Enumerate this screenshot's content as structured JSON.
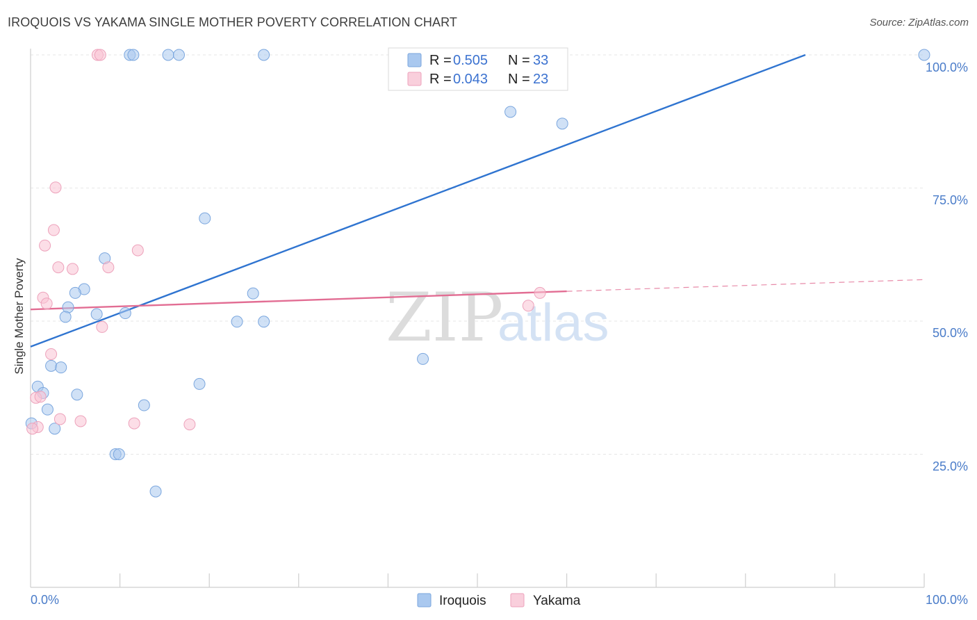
{
  "title": "IROQUOIS VS YAKAMA SINGLE MOTHER POVERTY CORRELATION CHART",
  "source": "Source: ZipAtlas.com",
  "colors": {
    "iroquois": "#a9c8ef",
    "iroquois_line": "#2f74d0",
    "yakama": "#f4b6c9",
    "yakama_line": "#e26d93",
    "tick": "#4a7cc9"
  },
  "chart_data": {
    "type": "scatter",
    "title": "IROQUOIS VS YAKAMA SINGLE MOTHER POVERTY CORRELATION CHART",
    "xlabel": "",
    "ylabel": "Single Mother Poverty",
    "xlim": [
      0,
      100
    ],
    "ylim": [
      0,
      100
    ],
    "x_tick_labels": [
      "0.0%",
      "100.0%"
    ],
    "y_tick_labels": [
      "25.0%",
      "50.0%",
      "75.0%",
      "100.0%"
    ],
    "y_ticks": [
      25,
      50,
      75,
      100
    ],
    "legend": [
      {
        "name": "Iroquois",
        "r_label": "R = ",
        "r": "0.505",
        "n_label": "N = ",
        "n": "33"
      },
      {
        "name": "Yakama",
        "r_label": "R = ",
        "r": "0.043",
        "n_label": "N = ",
        "n": "23"
      }
    ],
    "series": [
      {
        "name": "Iroquois",
        "points": [
          [
            11.1,
            100
          ],
          [
            11.5,
            100
          ],
          [
            15.4,
            100
          ],
          [
            16.6,
            100
          ],
          [
            26.1,
            100
          ],
          [
            100,
            100
          ],
          [
            53.7,
            89.3
          ],
          [
            59.5,
            87.1
          ],
          [
            19.5,
            69.3
          ],
          [
            8.3,
            61.8
          ],
          [
            6.0,
            56.0
          ],
          [
            5.0,
            55.3
          ],
          [
            24.9,
            55.2
          ],
          [
            4.2,
            52.6
          ],
          [
            7.4,
            51.3
          ],
          [
            10.6,
            51.5
          ],
          [
            3.9,
            50.8
          ],
          [
            23.1,
            49.9
          ],
          [
            26.1,
            49.9
          ],
          [
            43.9,
            42.9
          ],
          [
            2.3,
            41.6
          ],
          [
            3.4,
            41.3
          ],
          [
            0.8,
            37.7
          ],
          [
            18.9,
            38.2
          ],
          [
            1.4,
            36.5
          ],
          [
            5.2,
            36.2
          ],
          [
            12.7,
            34.2
          ],
          [
            1.9,
            33.4
          ],
          [
            0.1,
            30.8
          ],
          [
            2.7,
            29.8
          ],
          [
            9.5,
            25.0
          ],
          [
            9.9,
            25.0
          ],
          [
            14.0,
            18.0
          ]
        ]
      },
      {
        "name": "Yakama",
        "points": [
          [
            7.5,
            100
          ],
          [
            7.8,
            100
          ],
          [
            2.8,
            75.1
          ],
          [
            2.6,
            67.1
          ],
          [
            1.6,
            64.2
          ],
          [
            12.0,
            63.3
          ],
          [
            3.1,
            60.1
          ],
          [
            4.7,
            59.8
          ],
          [
            8.7,
            60.1
          ],
          [
            57.0,
            55.3
          ],
          [
            1.4,
            54.4
          ],
          [
            1.8,
            53.3
          ],
          [
            55.7,
            52.9
          ],
          [
            8.0,
            48.9
          ],
          [
            2.3,
            43.8
          ],
          [
            0.6,
            35.6
          ],
          [
            1.1,
            35.8
          ],
          [
            3.3,
            31.6
          ],
          [
            5.6,
            31.2
          ],
          [
            11.6,
            30.8
          ],
          [
            17.8,
            30.6
          ],
          [
            0.8,
            30.1
          ],
          [
            0.2,
            29.8
          ]
        ]
      }
    ],
    "trend_lines": [
      {
        "name": "Iroquois",
        "start": [
          0,
          45.2
        ],
        "end": [
          86.7,
          100
        ],
        "dashed_to": null
      },
      {
        "name": "Yakama",
        "start": [
          0,
          52.2
        ],
        "end": [
          60,
          55.6
        ],
        "dashed_to": [
          100,
          57.8
        ]
      }
    ],
    "watermark": {
      "part1": "ZIP",
      "part2": "atlas"
    }
  }
}
